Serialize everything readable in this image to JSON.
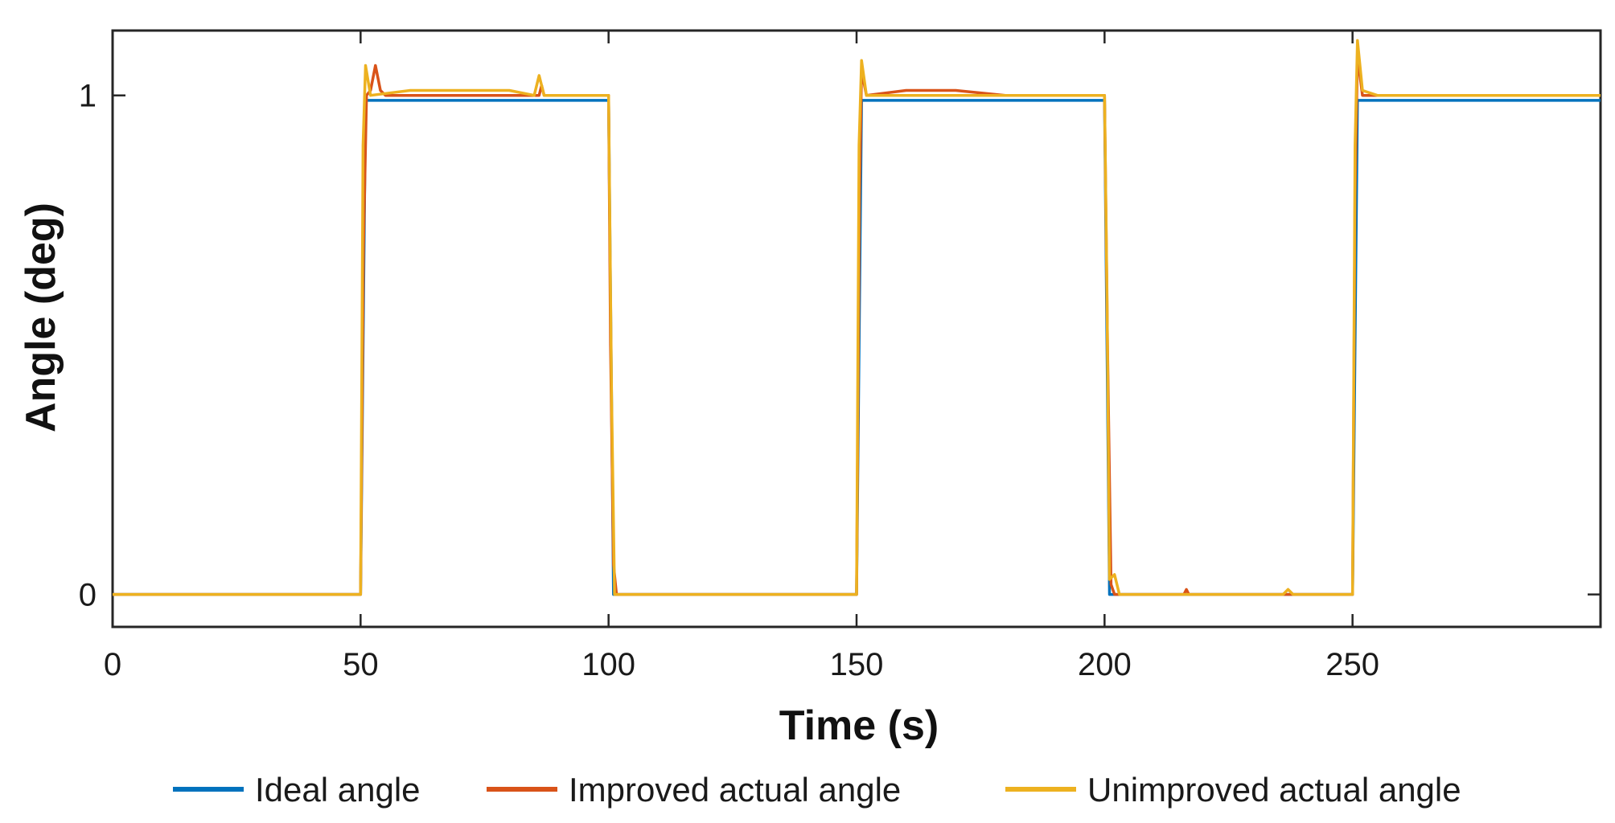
{
  "chart_data": {
    "type": "line",
    "title": "",
    "xlabel": "Time (s)",
    "ylabel": "Angle (deg)",
    "xlim": [
      0,
      300
    ],
    "ylim": [
      -0.065,
      1.13
    ],
    "x_ticks": [
      0,
      50,
      100,
      150,
      200,
      250
    ],
    "y_ticks": [
      0,
      1
    ],
    "grid": false,
    "legend_position": "bottom",
    "series": [
      {
        "name": "Ideal angle",
        "color": "#0072BD",
        "points": [
          [
            0,
            0
          ],
          [
            50,
            0
          ],
          [
            51,
            0.99
          ],
          [
            100,
            0.99
          ],
          [
            101,
            0
          ],
          [
            150,
            0
          ],
          [
            151,
            0.99
          ],
          [
            200,
            0.99
          ],
          [
            201,
            0
          ],
          [
            250,
            0
          ],
          [
            251,
            0.99
          ],
          [
            300,
            0.99
          ]
        ]
      },
      {
        "name": "Improved actual angle",
        "color": "#D95319",
        "points": [
          [
            0,
            0
          ],
          [
            50,
            0
          ],
          [
            50.6,
            0.7
          ],
          [
            51.2,
            1.0
          ],
          [
            52,
            1.01
          ],
          [
            53,
            1.06
          ],
          [
            54,
            1.01
          ],
          [
            55,
            1.0
          ],
          [
            86,
            1.0
          ],
          [
            86.5,
            1.02
          ],
          [
            87,
            1.0
          ],
          [
            100,
            1.0
          ],
          [
            100.4,
            0.5
          ],
          [
            101,
            0.06
          ],
          [
            101.6,
            0
          ],
          [
            150,
            0
          ],
          [
            150.6,
            0.8
          ],
          [
            151,
            1.05
          ],
          [
            152,
            1.0
          ],
          [
            160,
            1.01
          ],
          [
            170,
            1.01
          ],
          [
            180,
            1.0
          ],
          [
            200,
            1.0
          ],
          [
            200.6,
            0.5
          ],
          [
            201.3,
            0.02
          ],
          [
            202,
            0
          ],
          [
            216,
            0
          ],
          [
            216.5,
            0.01
          ],
          [
            217,
            0
          ],
          [
            250,
            0
          ],
          [
            250.5,
            0.8
          ],
          [
            251,
            1.08
          ],
          [
            252,
            1.0
          ],
          [
            300,
            1.0
          ]
        ]
      },
      {
        "name": "Unimproved actual angle",
        "color": "#EDB120",
        "points": [
          [
            0,
            0
          ],
          [
            50,
            0
          ],
          [
            50.5,
            0.9
          ],
          [
            51,
            1.06
          ],
          [
            52,
            1.0
          ],
          [
            60,
            1.01
          ],
          [
            80,
            1.01
          ],
          [
            85,
            1.0
          ],
          [
            86,
            1.04
          ],
          [
            87,
            1.0
          ],
          [
            100,
            1.0
          ],
          [
            100.6,
            0.4
          ],
          [
            101.2,
            0
          ],
          [
            150,
            0
          ],
          [
            150.5,
            0.9
          ],
          [
            151,
            1.07
          ],
          [
            152,
            1.0
          ],
          [
            200,
            1.0
          ],
          [
            200.5,
            0.6
          ],
          [
            201,
            0.03
          ],
          [
            202,
            0.04
          ],
          [
            203,
            0
          ],
          [
            236,
            0
          ],
          [
            237,
            0.01
          ],
          [
            238,
            0
          ],
          [
            250,
            0
          ],
          [
            250.5,
            0.9
          ],
          [
            251,
            1.11
          ],
          [
            252,
            1.01
          ],
          [
            255,
            1.0
          ],
          [
            300,
            1.0
          ]
        ]
      }
    ]
  }
}
